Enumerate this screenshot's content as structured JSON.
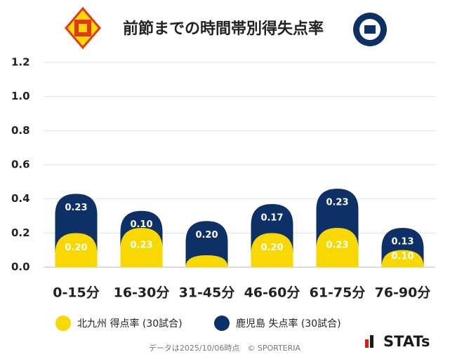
{
  "chart_data": {
    "type": "stacked_bar",
    "title": "前節までの時間帯別得失点率",
    "categories": [
      "0-15分",
      "16-30分",
      "31-45分",
      "46-60分",
      "61-75分",
      "76-90分"
    ],
    "series": [
      {
        "name": "北九州 得点率 (30試合)",
        "color": "#f9d800",
        "values": [
          0.2,
          0.23,
          0.07,
          0.2,
          0.23,
          0.1
        ],
        "value_labels": [
          "0.20",
          "0.23",
          null,
          "0.20",
          "0.23",
          "0.10"
        ]
      },
      {
        "name": "鹿児島 失点率 (30試合)",
        "color": "#0d3166",
        "values": [
          0.23,
          0.1,
          0.2,
          0.17,
          0.23,
          0.13
        ],
        "value_labels": [
          "0.23",
          "0.10",
          "0.20",
          "0.17",
          "0.23",
          "0.13"
        ]
      }
    ],
    "ylim": [
      0,
      1.2
    ],
    "yticks": [
      {
        "value": 0,
        "label": "0.0"
      },
      {
        "value": 0.2,
        "label": "0.2"
      },
      {
        "value": 0.4,
        "label": "0.4"
      },
      {
        "value": 0.6,
        "label": "0.6"
      },
      {
        "value": 0.8,
        "label": "0.8"
      },
      {
        "value": 1.0,
        "label": "1.0"
      },
      {
        "value": 1.2,
        "label": "1.2"
      }
    ],
    "grid": true,
    "footer": "データは2025/10/06時点　© SPORTERIA",
    "brand": "STATs"
  }
}
